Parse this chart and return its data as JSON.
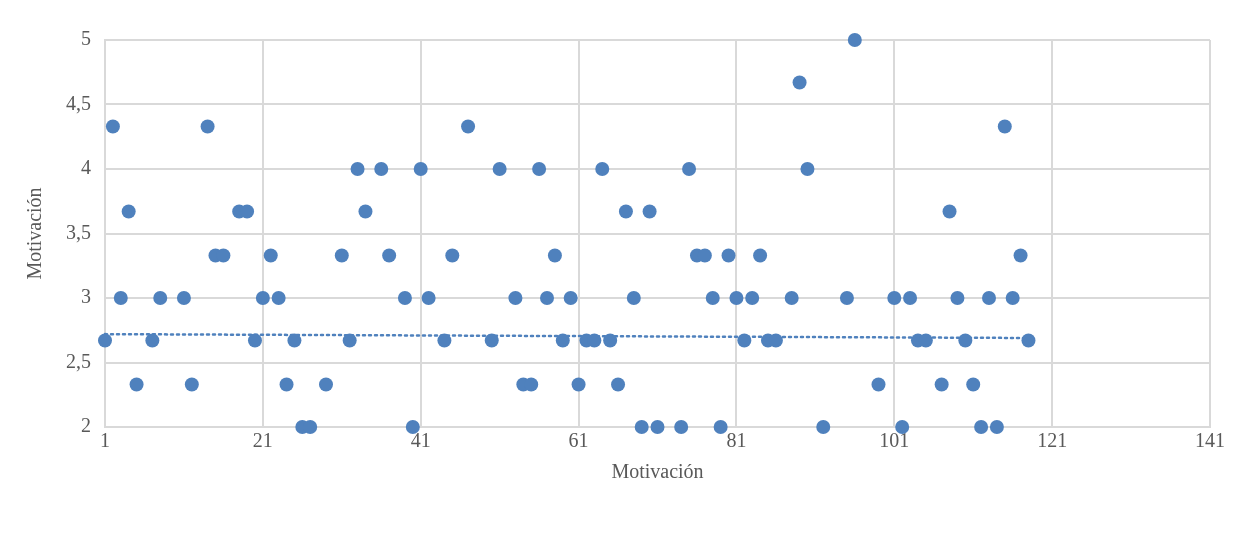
{
  "chart_data": {
    "type": "scatter",
    "xlabel": "Motivación",
    "ylabel": "Motivación",
    "xlim": [
      1,
      141
    ],
    "xticks": [
      1,
      21,
      41,
      61,
      81,
      101,
      121,
      141
    ],
    "ylim": [
      2,
      5
    ],
    "yticks": [
      2,
      {
        "value": 2.5,
        "label": "2,5"
      },
      3,
      {
        "value": 3.5,
        "label": "3,5"
      },
      4,
      {
        "value": 4.5,
        "label": "4,5"
      },
      5
    ],
    "grid": true,
    "marker": "circle",
    "legend": false,
    "series": [
      {
        "type": "scatter",
        "color": "#4f81bd",
        "x": [
          1,
          2,
          3,
          4,
          5,
          7,
          8,
          11,
          12,
          14,
          15,
          16,
          18,
          19,
          20,
          21,
          22,
          23,
          24,
          25,
          26,
          27,
          29,
          31,
          32,
          33,
          34,
          36,
          37,
          39,
          40,
          41,
          42,
          44,
          45,
          47,
          50,
          51,
          53,
          54,
          55,
          56,
          57,
          58,
          59,
          60,
          61,
          62,
          63,
          64,
          65,
          66,
          67,
          68,
          69,
          70,
          71,
          74,
          75,
          76,
          77,
          78,
          79,
          80,
          81,
          82,
          83,
          84,
          85,
          86,
          88,
          89,
          90,
          92,
          95,
          96,
          99,
          101,
          102,
          103,
          104,
          105,
          107,
          108,
          109,
          110,
          111,
          112,
          113,
          114,
          115,
          116,
          117,
          118
        ],
        "values": [
          2.67,
          4.33,
          3,
          3.67,
          2.33,
          2.67,
          3,
          3,
          2.33,
          4.33,
          3.33,
          3.33,
          3.67,
          3.67,
          2.67,
          3,
          3.33,
          3,
          2.33,
          2.67,
          2,
          2,
          2.33,
          3.33,
          2.67,
          4,
          3.67,
          4,
          3.33,
          3,
          2,
          4,
          3,
          2.67,
          3.33,
          4.33,
          2.67,
          4,
          3,
          2.33,
          2.33,
          4,
          3,
          3.33,
          2.67,
          3,
          2.33,
          2.67,
          2.67,
          4,
          2.67,
          2.33,
          3.67,
          3,
          2,
          3.67,
          2,
          2,
          4,
          3.33,
          3.33,
          3,
          2,
          3.33,
          3,
          2.67,
          3,
          3.33,
          2.67,
          2.67,
          3,
          4.67,
          4,
          2,
          3,
          5,
          2.33,
          3,
          2,
          3,
          2.67,
          2.67,
          2.33,
          3.67,
          3,
          2.67,
          2.33,
          2,
          3,
          2,
          4.33,
          3,
          3.33,
          2.67
        ]
      },
      {
        "type": "line",
        "color": "#4f81bd",
        "line_style": "dotted",
        "marker": "none",
        "x": [
          1,
          118
        ],
        "values": [
          2.72,
          2.69
        ]
      }
    ]
  }
}
